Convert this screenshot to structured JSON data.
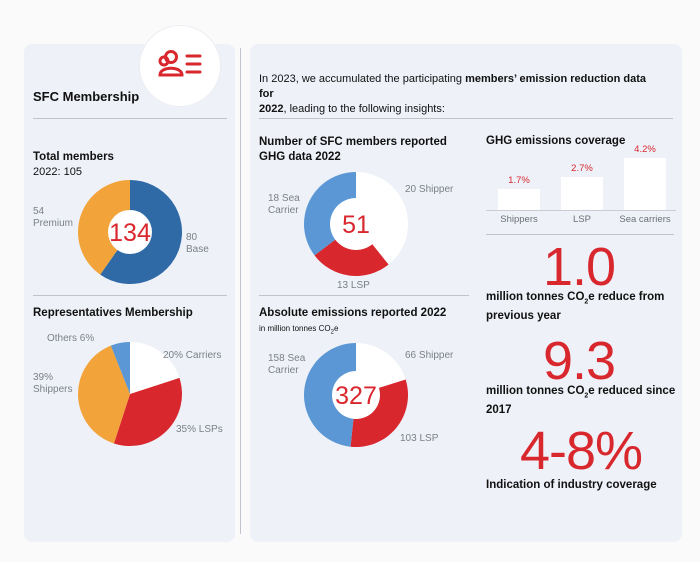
{
  "colors": {
    "red": "#d9272e",
    "blue": "#2f6aa6",
    "light_blue": "#5a97d4",
    "orange": "#f2a33a",
    "white": "#ffffff",
    "grey": "#7b7f88"
  },
  "icon": "people-list-icon",
  "left": {
    "title": "SFC Membership",
    "total": {
      "heading": "Total members",
      "sub": "2022: 105",
      "center": "134",
      "label_premium_value": "54",
      "label_premium_name": "Premium",
      "label_base_value": "80",
      "label_base_name": "Base"
    },
    "reps": {
      "heading": "Representatives Membership",
      "label_others": "Others 6%",
      "label_carriers": "20% Carriers",
      "label_shippers_pct": "39%",
      "label_shippers_name": "Shippers",
      "label_lsps": "35% LSPs"
    }
  },
  "right": {
    "intro_prefix": "In 2023, we accumulated the participating ",
    "intro_bold1": "members’ emission reduction data for",
    "intro_bold2": "2022",
    "intro_suffix": ", leading to the following insights:",
    "reported": {
      "heading_line1": "Number of SFC members reported",
      "heading_line2": "GHG data 2022",
      "center": "51",
      "label_sea_line1": "18 Sea",
      "label_sea_line2": "Carrier",
      "label_shipper": "20 Shipper",
      "label_lsp": "13 LSP"
    },
    "absolute": {
      "heading": "Absolute emissions reported 2022",
      "unit_prefix": "in million tonnes CO",
      "unit_sub": "2",
      "unit_suffix": "e",
      "center": "327",
      "label_sea_line1": "158 Sea",
      "label_sea_line2": "Carrier",
      "label_shipper": "66 Shipper",
      "label_lsp": "103 LSP"
    },
    "coverage": {
      "heading": "GHG emissions coverage"
    },
    "stat1": {
      "value": "1.0",
      "line1_prefix": "million tonnes CO",
      "line1_sub": "2",
      "line1_suffix": "e reduce from",
      "line2": "previous year"
    },
    "stat2": {
      "value": "9.3",
      "line1_prefix": "million tonnes CO",
      "line1_sub": "2",
      "line1_suffix": "e reduced since",
      "line2": "2017"
    },
    "stat3": {
      "value": "4-8%",
      "line1": "Indication of industry coverage"
    }
  },
  "chart_data": [
    {
      "type": "pie",
      "title": "Total members",
      "categories": [
        "Base",
        "Premium"
      ],
      "values": [
        80,
        54
      ],
      "total": 134,
      "colors": [
        "#2f6aa6",
        "#f2a33a"
      ]
    },
    {
      "type": "pie",
      "title": "Representatives Membership",
      "categories": [
        "Carriers",
        "LSPs",
        "Shippers",
        "Others"
      ],
      "values": [
        20,
        35,
        39,
        6
      ],
      "colors": [
        "#ffffff",
        "#d9272e",
        "#f2a33a",
        "#5a97d4"
      ]
    },
    {
      "type": "pie",
      "title": "Number of SFC members reported GHG data 2022",
      "categories": [
        "Shipper",
        "LSP",
        "Sea Carrier"
      ],
      "values": [
        20,
        13,
        18
      ],
      "total": 51,
      "colors": [
        "#ffffff",
        "#d9272e",
        "#5a97d4"
      ]
    },
    {
      "type": "pie",
      "title": "Absolute emissions reported 2022",
      "categories": [
        "Shipper",
        "LSP",
        "Sea Carrier"
      ],
      "values": [
        66,
        103,
        158
      ],
      "total": 327,
      "colors": [
        "#ffffff",
        "#d9272e",
        "#5a97d4"
      ]
    },
    {
      "type": "bar",
      "title": "GHG emissions coverage",
      "categories": [
        "Shippers",
        "LSP",
        "Sea carriers"
      ],
      "values": [
        1.7,
        2.7,
        4.2
      ],
      "value_labels": [
        "1.7%",
        "2.7%",
        "4.2%"
      ],
      "ylim": [
        0,
        4.2
      ]
    }
  ]
}
